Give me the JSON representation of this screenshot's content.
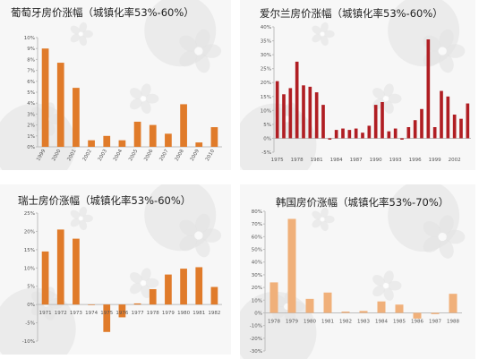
{
  "chart_data": [
    {
      "type": "bar",
      "title": "葡萄牙房价涨幅（城镇化率53%-60%）",
      "categories": [
        "1999",
        "2000",
        "2001",
        "2002",
        "2003",
        "2004",
        "2005",
        "2006",
        "2007",
        "2008",
        "2009",
        "2010"
      ],
      "values": [
        9.0,
        7.7,
        5.4,
        0.6,
        1.0,
        0.6,
        2.3,
        2.0,
        1.2,
        3.9,
        0.4,
        1.8
      ],
      "yticks": [
        "0%",
        "1%",
        "2%",
        "3%",
        "4%",
        "5%",
        "6%",
        "7%",
        "8%",
        "9%",
        "10%"
      ],
      "ylim": [
        0,
        10
      ],
      "color": "#e07b2a"
    },
    {
      "type": "bar",
      "title": "爱尔兰房价涨幅（城镇化率53%-60%）",
      "categories": [
        "1975",
        "1976",
        "1977",
        "1978",
        "1979",
        "1980",
        "1981",
        "1982",
        "1983",
        "1984",
        "1985",
        "1986",
        "1987",
        "1988",
        "1989",
        "1990",
        "1991",
        "1992",
        "1993",
        "1994",
        "1995",
        "1996",
        "1997",
        "1998",
        "1999",
        "2000",
        "2001",
        "2002",
        "2003",
        "2004"
      ],
      "xticks": [
        "1975",
        "1978",
        "1981",
        "1984",
        "1987",
        "1990",
        "1993",
        "1996",
        "1999",
        "2002"
      ],
      "values": [
        20.5,
        15.8,
        18.0,
        27.5,
        19.0,
        18.5,
        16.5,
        12.0,
        -0.5,
        3.0,
        3.5,
        3.0,
        3.5,
        2.0,
        4.5,
        12.0,
        13.0,
        2.5,
        3.5,
        -0.5,
        4.0,
        6.5,
        10.5,
        35.5,
        4.0,
        17.0,
        15.0,
        8.5,
        7.0,
        12.5
      ],
      "yticks": [
        "-5%",
        "0%",
        "5%",
        "10%",
        "15%",
        "20%",
        "25%",
        "30%",
        "35%",
        "40%"
      ],
      "ylim": [
        -5,
        40
      ],
      "color": "#b01e23"
    },
    {
      "type": "bar",
      "title": "瑞士房价涨幅（城镇化率53%-60%）",
      "categories": [
        "1971",
        "1972",
        "1973",
        "1974",
        "1975",
        "1976",
        "1977",
        "1978",
        "1979",
        "1980",
        "1981",
        "1982"
      ],
      "values": [
        14.5,
        20.5,
        18.0,
        0.0,
        -7.5,
        -3.5,
        0.3,
        4.2,
        8.2,
        9.8,
        10.2,
        4.8
      ],
      "yticks": [
        "-10%",
        "-5%",
        "0%",
        "5%",
        "10%",
        "15%",
        "20%",
        "25%"
      ],
      "ylim": [
        -10,
        25
      ],
      "color": "#e07b2a"
    },
    {
      "type": "bar",
      "title": "韩国房价涨幅（城镇化率53%-70%）",
      "categories": [
        "1978",
        "1979",
        "1980",
        "1981",
        "1982",
        "1983",
        "1984",
        "1985",
        "1986",
        "1987",
        "1988"
      ],
      "values": [
        24.0,
        74.0,
        11.0,
        16.0,
        1.0,
        1.5,
        9.0,
        6.5,
        -4.5,
        -1.0,
        15.0
      ],
      "yticks": [
        "-30%",
        "-20%",
        "-10%",
        "0%",
        "10%",
        "20%",
        "30%",
        "40%",
        "50%",
        "60%",
        "70%",
        "80%"
      ],
      "ylim": [
        -30,
        80
      ],
      "color": "#f0b07a"
    }
  ]
}
